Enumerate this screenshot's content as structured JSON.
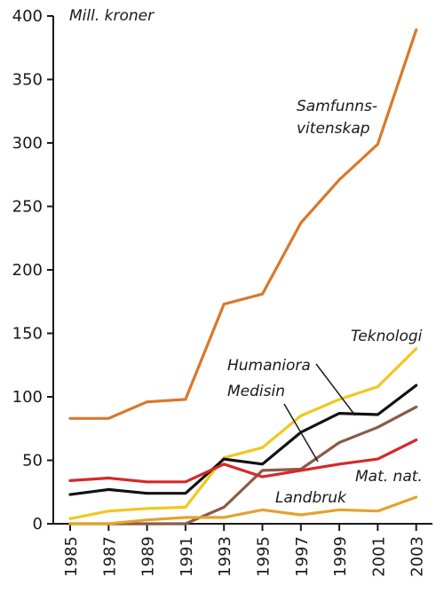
{
  "chart_data": {
    "type": "line",
    "unit_label": "Mill. kroner",
    "x": [
      "1985",
      "1987",
      "1989",
      "1991",
      "1993",
      "1995",
      "1997",
      "1999",
      "2001",
      "2003"
    ],
    "ylim": [
      0,
      400
    ],
    "y_ticks": [
      "0",
      "50",
      "100",
      "150",
      "200",
      "250",
      "300",
      "350",
      "400"
    ],
    "grid": false,
    "series": [
      {
        "name": "Samfunns- vitenskap",
        "label_lines": [
          "Samfunns-",
          "vitenskap"
        ],
        "color": "#d9782b",
        "values": [
          83,
          83,
          96,
          98,
          173,
          181,
          237,
          271,
          299,
          389
        ]
      },
      {
        "name": "Teknologi",
        "label_lines": [
          "Teknologi"
        ],
        "color": "#f0c81e",
        "values": [
          4,
          10,
          12,
          13,
          52,
          60,
          85,
          98,
          108,
          138
        ]
      },
      {
        "name": "Humaniora",
        "label_lines": [
          "Humaniora"
        ],
        "color": "#111111",
        "values": [
          23,
          27,
          24,
          24,
          51,
          47,
          72,
          87,
          86,
          109
        ]
      },
      {
        "name": "Medisin",
        "label_lines": [
          "Medisin"
        ],
        "color": "#8b5a4a",
        "values": [
          0,
          0,
          0,
          0,
          13,
          42,
          43,
          64,
          76,
          92
        ]
      },
      {
        "name": "Mat. nat.",
        "label_lines": [
          "Mat. nat."
        ],
        "color": "#d62828",
        "values": [
          34,
          36,
          33,
          33,
          47,
          37,
          42,
          47,
          51,
          66
        ]
      },
      {
        "name": "Landbruk",
        "label_lines": [
          "Landbruk"
        ],
        "color": "#e3a32c",
        "values": [
          0,
          0,
          3,
          5,
          5,
          11,
          7,
          11,
          10,
          21
        ]
      }
    ]
  }
}
